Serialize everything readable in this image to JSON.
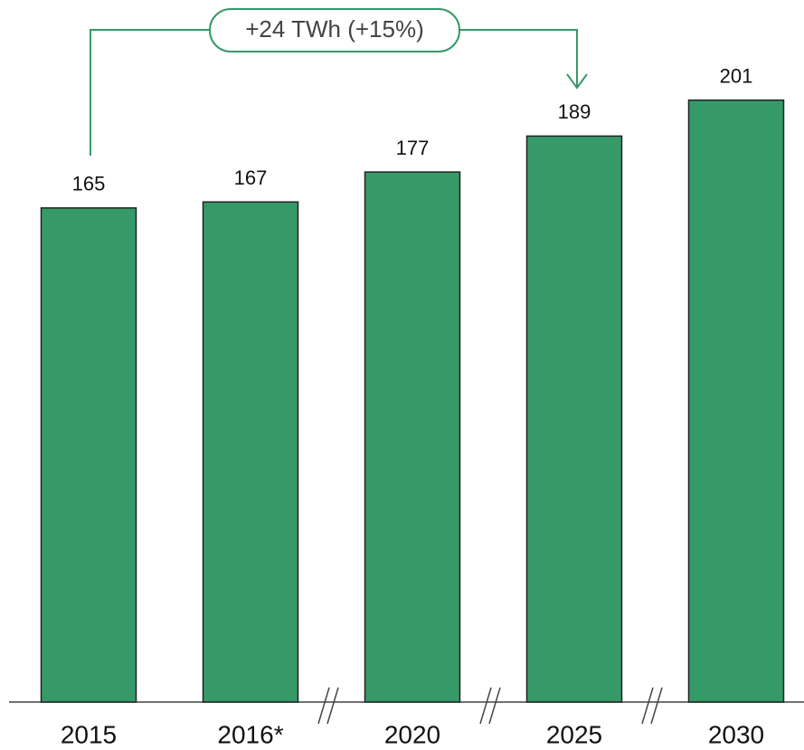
{
  "chart_data": {
    "type": "bar",
    "categories": [
      "2015",
      "2016*",
      "2020",
      "2025",
      "2030"
    ],
    "values": [
      165,
      167,
      177,
      189,
      201
    ],
    "color": "#359a68",
    "annotation": "+24 TWh (+15%)"
  }
}
